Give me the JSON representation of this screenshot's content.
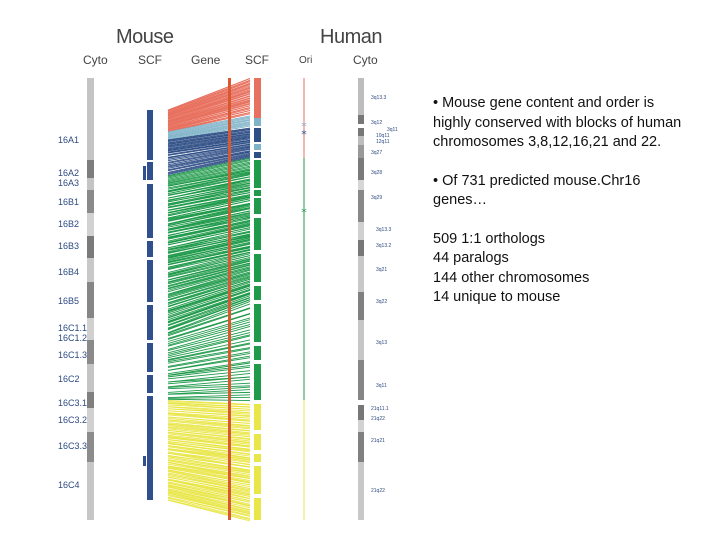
{
  "headers": {
    "mouse": "Mouse",
    "human": "Human",
    "cols": {
      "cyto_left": "Cyto",
      "scf_left": "SCF",
      "gene": "Gene",
      "scf_right": "SCF",
      "ori": "Ori",
      "cyto_right": "Cyto"
    }
  },
  "mouse_bands": [
    "16A1",
    "16A2",
    "16A3",
    "16B1",
    "16B2",
    "16B3",
    "16B4",
    "16B5",
    "16C1.1",
    "16C1.2",
    "16C1.3",
    "16C2",
    "16C3.1",
    "16C3.2",
    "16C3.3",
    "16C4"
  ],
  "human_bands": [
    "3q13.3",
    "3q12",
    "3q11",
    "10q11",
    "12q11",
    "3q27",
    "3q28",
    "3q29",
    "3q13.3",
    "3q13.2",
    "3q21",
    "3q22",
    "3q13",
    "3q11",
    "21q11.1",
    "21q22",
    "21q21",
    "21q22"
  ],
  "colors": {
    "chr3": "#1f9a4a",
    "chr8": "#e8705e",
    "chr12": "#7fb3c8",
    "chr16": "#2e4e86",
    "chr21": "#e9e64a",
    "chr22": "#c8c8c8",
    "mouse_chr": "#2f4f8f",
    "cyto_gray": "#9a9a9a"
  },
  "summary": {
    "p1": "• Mouse gene content and order is highly conserved with blocks of human chromosomes 3,8,12,16,21 and 22.",
    "p2": "• Of  731 predicted mouse.Chr16 genes…",
    "stats": [
      "509 1:1 orthologs",
      "44 paralogs",
      "144 other chromosomes",
      "14 unique to mouse"
    ]
  }
}
